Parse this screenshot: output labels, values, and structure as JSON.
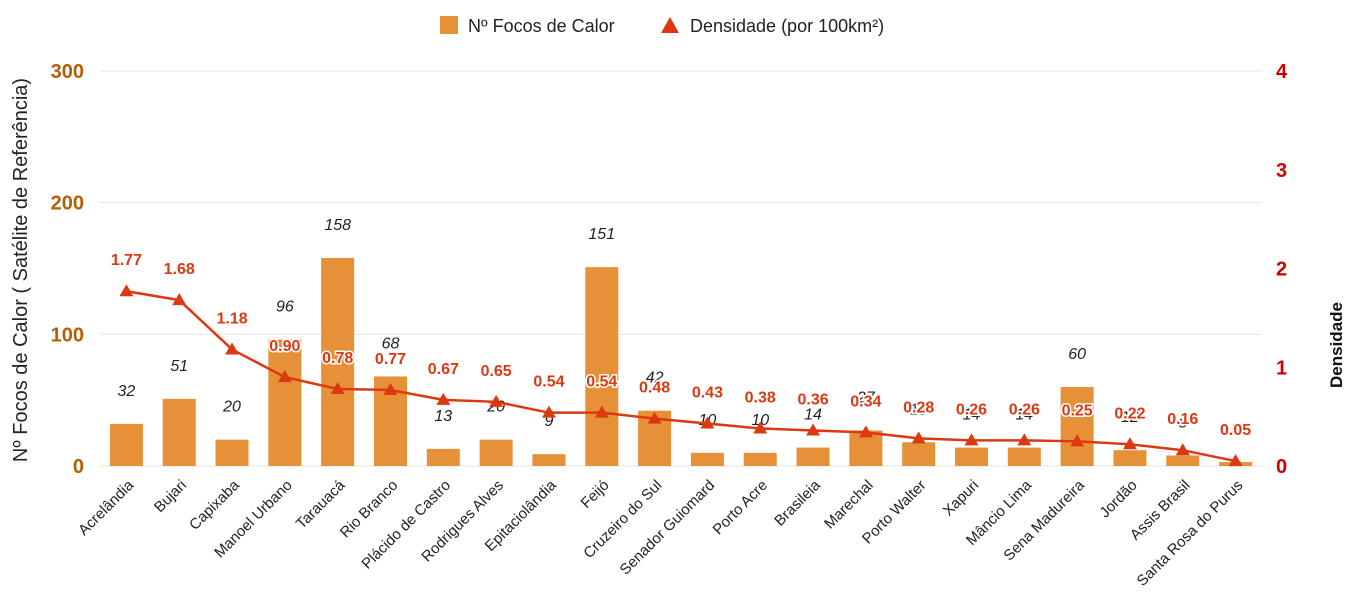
{
  "chart_data": {
    "type": "bar",
    "title": "",
    "categories": [
      "Acrelândia",
      "Bujari",
      "Capixaba",
      "Manoel Urbano",
      "Tarauacá",
      "Rio Branco",
      "Plácido de Castro",
      "Rodrigues Alves",
      "Epitaciolândia",
      "Feijó",
      "Cruzeiro do Sul",
      "Senador Guiomard",
      "Porto Acre",
      "Brasileia",
      "Marechal",
      "Porto Walter",
      "Xapuri",
      "Mâncio Lima",
      "Sena Madureira",
      "Jordão",
      "Assis Brasil",
      "Santa Rosa do Purus"
    ],
    "series": [
      {
        "name": "Nº Focos de Calor",
        "type": "bar",
        "axis": "left",
        "color": "#e69138",
        "values": [
          32,
          51,
          20,
          96,
          158,
          68,
          13,
          20,
          9,
          151,
          42,
          10,
          10,
          14,
          27,
          18,
          14,
          14,
          60,
          12,
          8,
          3
        ],
        "labels": [
          "32",
          "51",
          "20",
          "96",
          "158",
          "68",
          "13",
          "20",
          "9",
          "151",
          "42",
          "10",
          "10",
          "14",
          "27",
          "18",
          "14",
          "14",
          "60",
          "12",
          "8",
          "3"
        ]
      },
      {
        "name": "Densidade (por 100km²)",
        "type": "line",
        "marker": "triangle",
        "axis": "right",
        "color": "#dc3912",
        "values": [
          1.77,
          1.68,
          1.18,
          0.9,
          0.78,
          0.77,
          0.67,
          0.65,
          0.54,
          0.54,
          0.48,
          0.43,
          0.38,
          0.36,
          0.34,
          0.28,
          0.26,
          0.26,
          0.25,
          0.22,
          0.16,
          0.05
        ],
        "labels": [
          "1.77",
          "1.68",
          "1.18",
          "0.90",
          "0.78",
          "0.77",
          "0.67",
          "0.65",
          "0.54",
          "0.54",
          "0.48",
          "0.43",
          "0.38",
          "0.36",
          "0.34",
          "0.28",
          "0.26",
          "0.26",
          "0.25",
          "0.22",
          "0.16",
          "0.05"
        ]
      }
    ],
    "y_left": {
      "label": "Nº Focos de Calor ( Satélite de Referência)",
      "range": [
        0,
        300
      ],
      "ticks": [
        "0",
        "100",
        "200",
        "300"
      ],
      "color": "#b45f06"
    },
    "y_right": {
      "label": "Densidade",
      "range": [
        0,
        4
      ],
      "ticks": [
        "0",
        "1",
        "2",
        "3",
        "4"
      ],
      "color": "#cc0000"
    },
    "grid": true,
    "legend_position": "top-center"
  }
}
